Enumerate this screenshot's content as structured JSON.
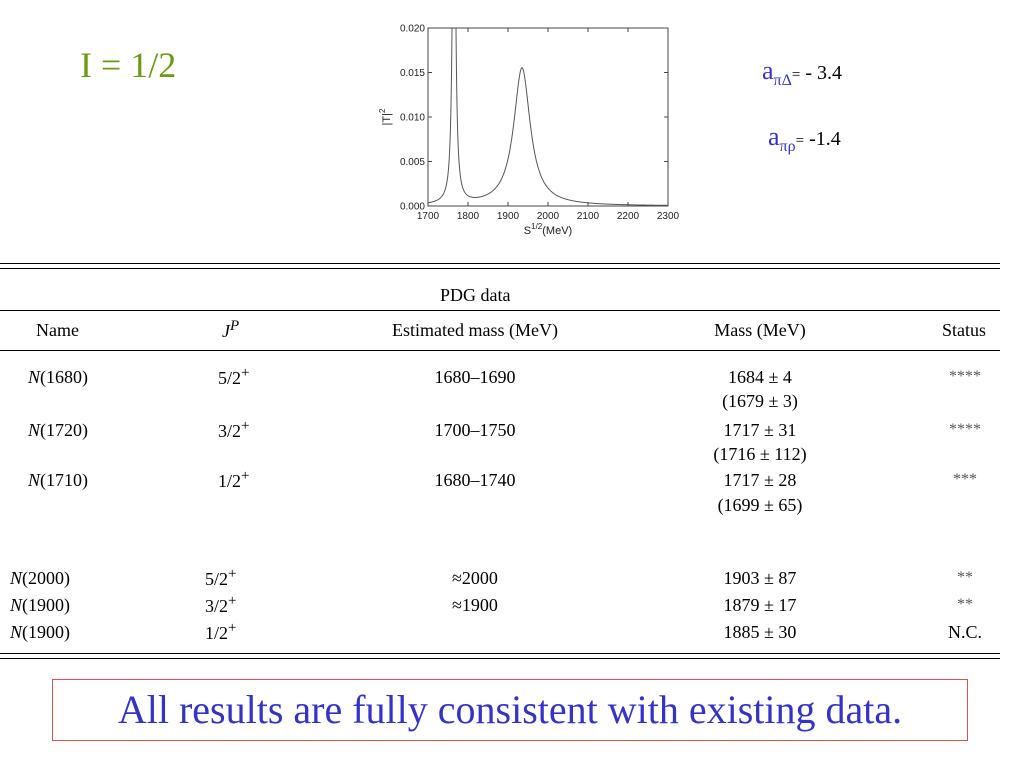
{
  "isospin_label": "I = 1/2",
  "params": [
    {
      "symbol": "a",
      "subscript": "πΔ",
      "eq": "=",
      "value": " - 3.4"
    },
    {
      "symbol": "a",
      "subscript": "πρ",
      "eq": "=",
      "value": "  -1.4"
    }
  ],
  "chart_data": {
    "type": "line",
    "xlabel": "S",
    "xlabel_sup": "1/2",
    "xlabel_unit": "(MeV)",
    "ylabel": "|T|",
    "ylabel_sup": "2",
    "xlim": [
      1700,
      2300
    ],
    "ylim": [
      0,
      0.02
    ],
    "xticks": [
      "1700",
      "1800",
      "1900",
      "2000",
      "2100",
      "2200",
      "2300"
    ],
    "yticks": [
      "0.000",
      "0.005",
      "0.010",
      "0.015",
      "0.020"
    ],
    "series": [
      {
        "peaks": [
          {
            "mass": 1765,
            "height": 0.05,
            "width": 8
          },
          {
            "mass": 1935,
            "height": 0.0155,
            "width": 50
          }
        ]
      }
    ]
  },
  "table": {
    "title": "PDG data",
    "headers": {
      "name": "Name",
      "jp": "J",
      "jp_sup": "P",
      "est": "Estimated mass (MeV)",
      "mass": "Mass (MeV)",
      "status": "Status"
    },
    "rows": [
      {
        "n": "N",
        "m": "(1680)",
        "jp": "5/2",
        "par": "+",
        "est": "1680–1690",
        "mass": "1684 ± 4",
        "mass2": "(1679 ± 3)",
        "status": "****"
      },
      {
        "n": "N",
        "m": "(1720)",
        "jp": "3/2",
        "par": "+",
        "est": "1700–1750",
        "mass": "1717 ± 31",
        "mass2": "(1716 ± 112)",
        "status": "****"
      },
      {
        "n": "N",
        "m": "(1710)",
        "jp": "1/2",
        "par": "+",
        "est": "1680–1740",
        "mass": "1717 ± 28",
        "mass2": "(1699 ± 65)",
        "status": "***"
      },
      {
        "n": "N",
        "m": "(2000)",
        "jp": "5/2",
        "par": "+",
        "est": "≈2000",
        "mass": "1903 ± 87",
        "mass2": "",
        "status": "**"
      },
      {
        "n": "N",
        "m": "(1900)",
        "jp": "3/2",
        "par": "+",
        "est": "≈1900",
        "mass": "1879 ± 17",
        "mass2": "",
        "status": "**"
      },
      {
        "n": "N",
        "m": "(1900)",
        "jp": "1/2",
        "par": "+",
        "est": "",
        "mass": "1885 ± 30",
        "mass2": "",
        "status": "N.C."
      }
    ]
  },
  "conclusion": "All results are fully consistent with existing data."
}
